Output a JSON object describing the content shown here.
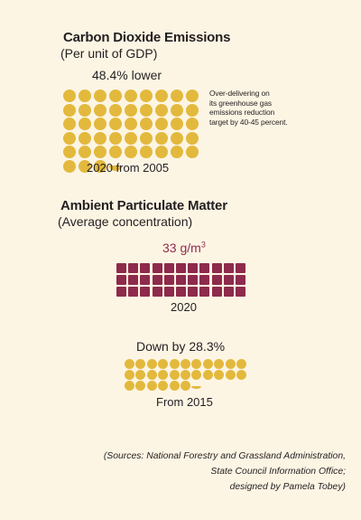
{
  "colors": {
    "background": "#fdf5e4",
    "dot_yellow": "#e3b93d",
    "square_maroon": "#8e2a4b",
    "text": "#231f20",
    "accent_text": "#8e2a4b"
  },
  "carbon": {
    "title": "Carbon Dioxide Emissions",
    "subtitle": "(Per unit of GDP)",
    "stat": "48.4% lower",
    "note_lines": [
      "Over-delivering on",
      "its greenhouse gas",
      "emissions reduction",
      "target by 40-45 percent."
    ],
    "caption": "2020 from 2005",
    "icon": "filled-circle",
    "full_dots": 48,
    "partial_dot_fraction": 0.4
  },
  "pm": {
    "title": "Ambient Particulate Matter",
    "subtitle": "(Average concentration)",
    "value": "33 g/m",
    "superscript": "3",
    "caption": "2020",
    "icon": "filled-square",
    "squares": 33,
    "change_label": "Down by 28.3%",
    "change_caption": "From 2015",
    "full_dots": 28,
    "partial_dot_fraction": 0.3
  },
  "sources": {
    "line1": "(Sources: National Forestry and Grassland Administration,",
    "line2": "State Council Information Office;",
    "line3": "designed by Pamela Tobey)"
  }
}
